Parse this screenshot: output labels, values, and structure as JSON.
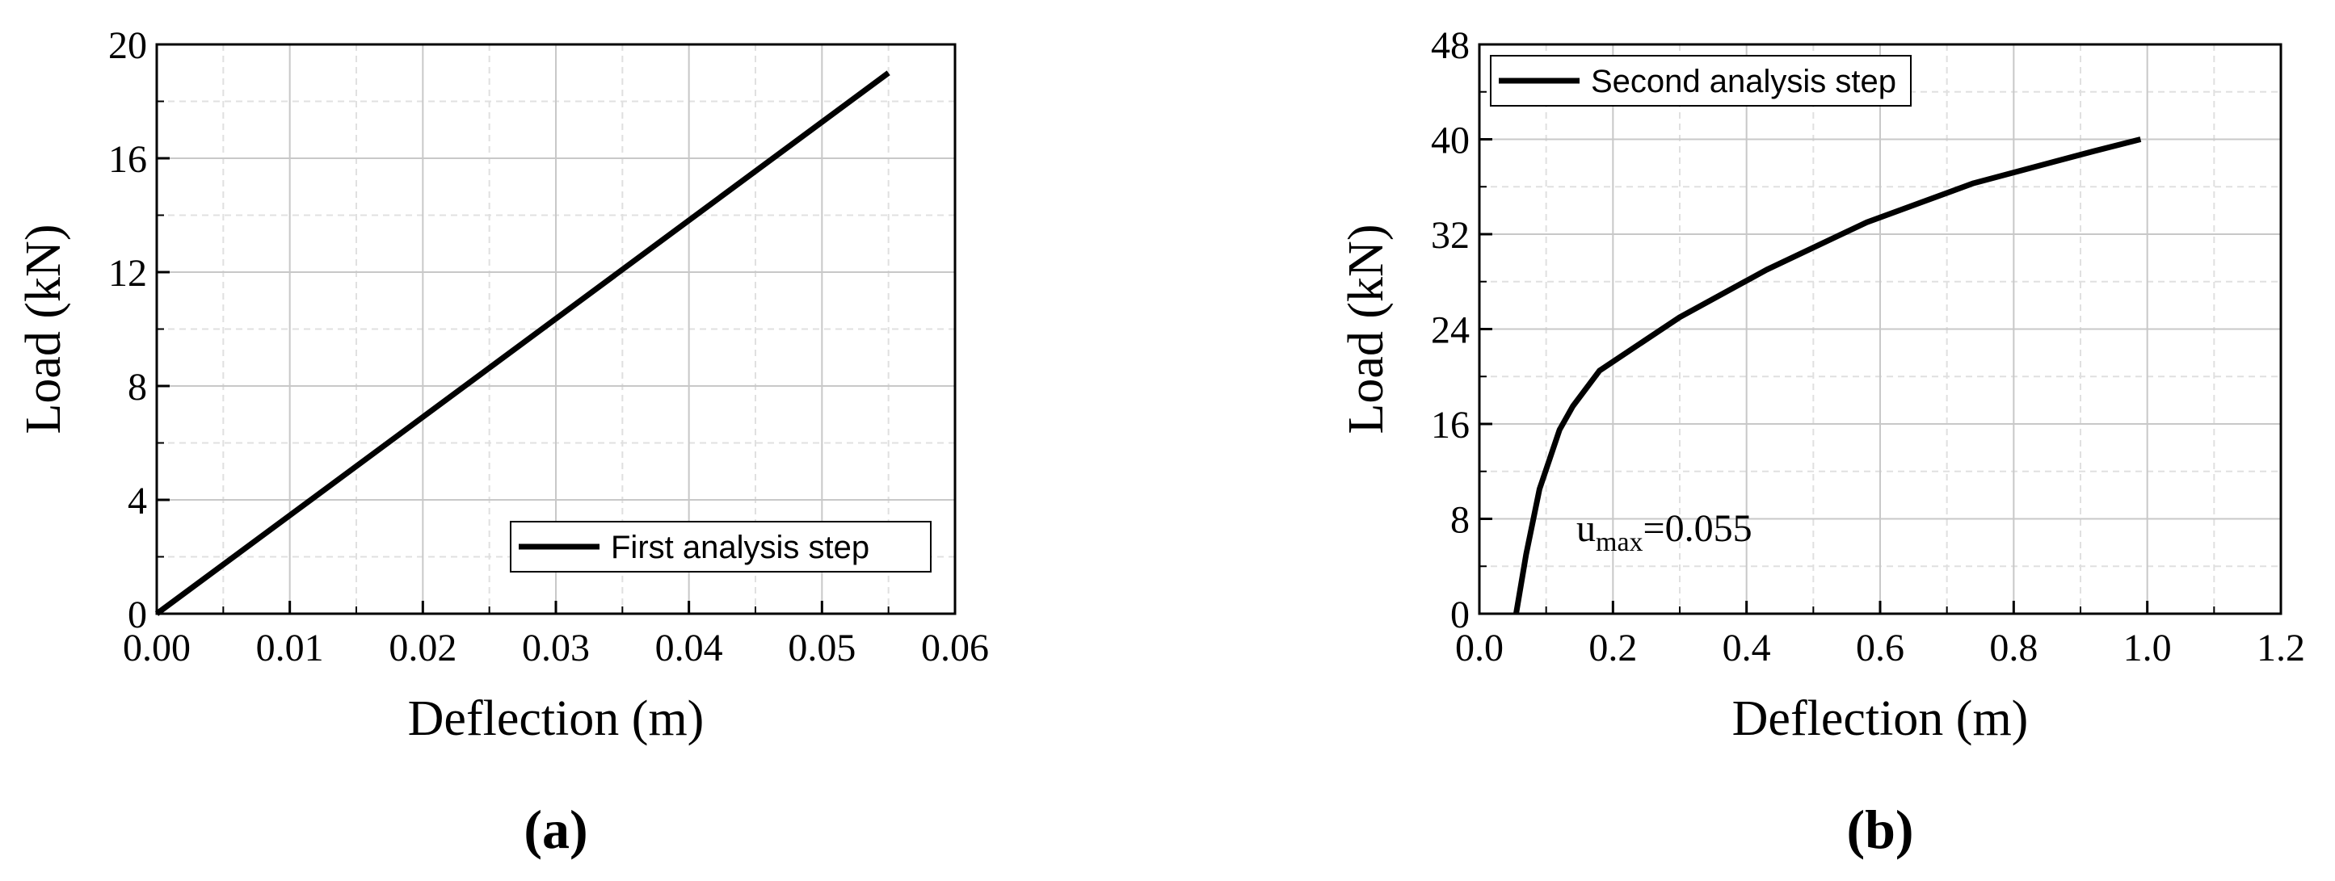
{
  "chart_data": [
    {
      "type": "line",
      "x_label": "Deflection (m)",
      "y_label": "Load (kN)",
      "caption": "(a)",
      "xlim": [
        0,
        0.06
      ],
      "ylim": [
        0,
        20
      ],
      "xticks": [
        {
          "value": 0,
          "label": "0.00"
        },
        0.01,
        0.02,
        0.03,
        0.04,
        0.05,
        0.06
      ],
      "yticks": [
        0,
        4,
        8,
        12,
        16,
        20
      ],
      "grid": true,
      "legend": "lower right",
      "x": [
        0,
        0.055
      ],
      "series": [
        {
          "name": "First analysis step",
          "color": "#000000",
          "values": [
            0,
            19
          ]
        }
      ]
    },
    {
      "type": "line",
      "x_label": "Deflection (m)",
      "y_label": "Load (kN)",
      "caption": "(b)",
      "xlim": [
        0,
        1.2
      ],
      "ylim": [
        0,
        48
      ],
      "xticks": [
        {
          "value": 0,
          "label": "0.0"
        },
        0.2,
        0.4,
        0.6,
        0.8,
        {
          "value": 1,
          "label": "1.0"
        },
        1.2
      ],
      "yticks": [
        0,
        8,
        16,
        24,
        32,
        40,
        48
      ],
      "grid": true,
      "legend": "upper left",
      "annotation": {
        "text": "u",
        "subscript": "max",
        "suffix": "=0.055"
      },
      "x": [
        0.055,
        0.07,
        0.09,
        0.12,
        0.14,
        0.18,
        0.3,
        0.43,
        0.58,
        0.74,
        0.92,
        0.99
      ],
      "series": [
        {
          "name": "Second analysis step",
          "color": "#000000",
          "values": [
            0,
            5,
            10.5,
            15.5,
            17.5,
            20.5,
            25,
            29,
            33,
            36.3,
            39,
            40
          ]
        }
      ]
    }
  ]
}
